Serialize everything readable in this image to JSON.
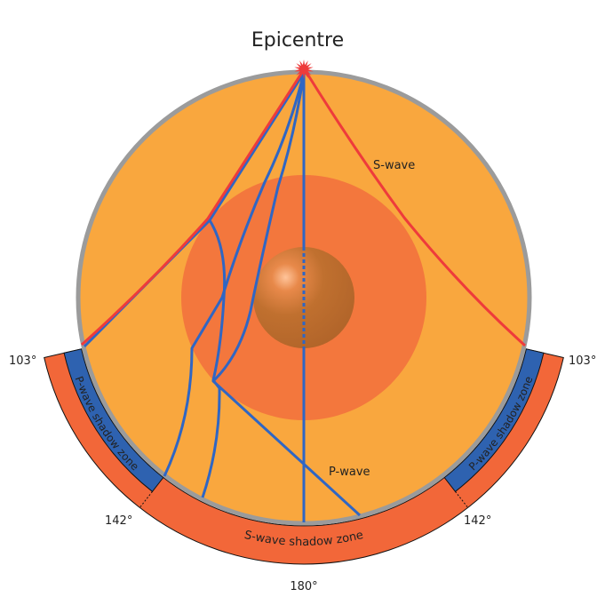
{
  "title": "Epicentre",
  "labels": {
    "s_wave": "S-wave",
    "p_wave": "P-wave",
    "p_shadow_left": "P-wave shadow zone",
    "p_shadow_right": "P-wave shadow zone",
    "s_shadow": "S-wave shadow zone"
  },
  "angles": {
    "p_shadow_start": 103,
    "p_shadow_end": 142,
    "antipode": 180,
    "label_103_left": "103°",
    "label_103_right": "103°",
    "label_142_left": "142°",
    "label_142_right": "142°",
    "label_180": "180°"
  },
  "colors": {
    "mantle": "#F9A73E",
    "outer_core": "#F3773D",
    "inner_core": "#B8692C",
    "crust_border": "#9B9B9B",
    "s_wave": "#EE3B3B",
    "p_wave": "#2F66C4",
    "s_shadow_zone": "#F26739",
    "p_shadow_zone": "#2E62B0"
  }
}
